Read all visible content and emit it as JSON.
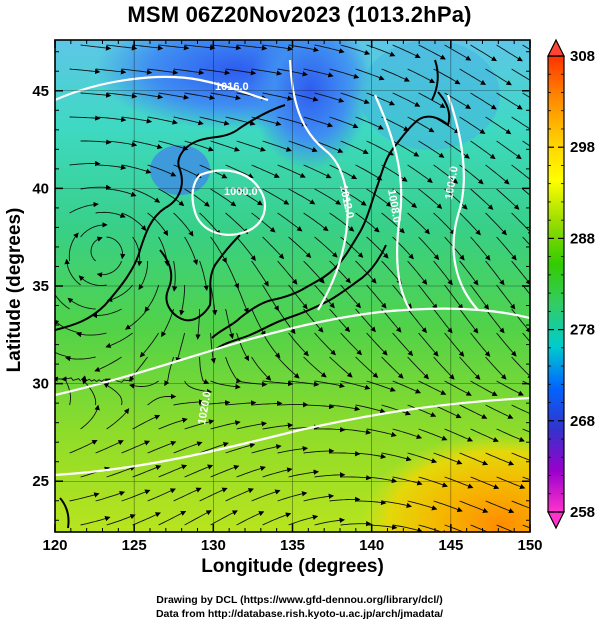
{
  "title": "MSM 06Z20Nov2023 (1013.2hPa)",
  "x_axis": {
    "label": "Longitude (degrees)",
    "range": [
      120,
      150
    ],
    "ticks": [
      120,
      125,
      130,
      135,
      140,
      145,
      150
    ]
  },
  "y_axis": {
    "label": "Latitude (degrees)",
    "range": [
      22.4,
      47.6
    ],
    "ticks": [
      25,
      30,
      35,
      40,
      45
    ]
  },
  "colorbar": {
    "range": [
      258,
      308
    ],
    "ticks": [
      258,
      268,
      278,
      288,
      298,
      308
    ],
    "colors": [
      "#ff33cc",
      "#9900cc",
      "#3333cc",
      "#0066ff",
      "#00cccc",
      "#33cc66",
      "#33cc00",
      "#99dd00",
      "#ffff00",
      "#ffcc00",
      "#ff8800",
      "#ff3300"
    ]
  },
  "contours": {
    "color": "#ffffff",
    "labels": [
      "1016.0",
      "1000.0",
      "1012.0",
      "1008.0",
      "1004.0",
      "1020.0"
    ]
  },
  "credits": {
    "line1": "Drawing by DCL (https://www.gfd-dennou.org/library/dcl/)",
    "line2": "Data from http://database.rish.kyoto-u.ac.jp/arch/jmadata/"
  }
}
